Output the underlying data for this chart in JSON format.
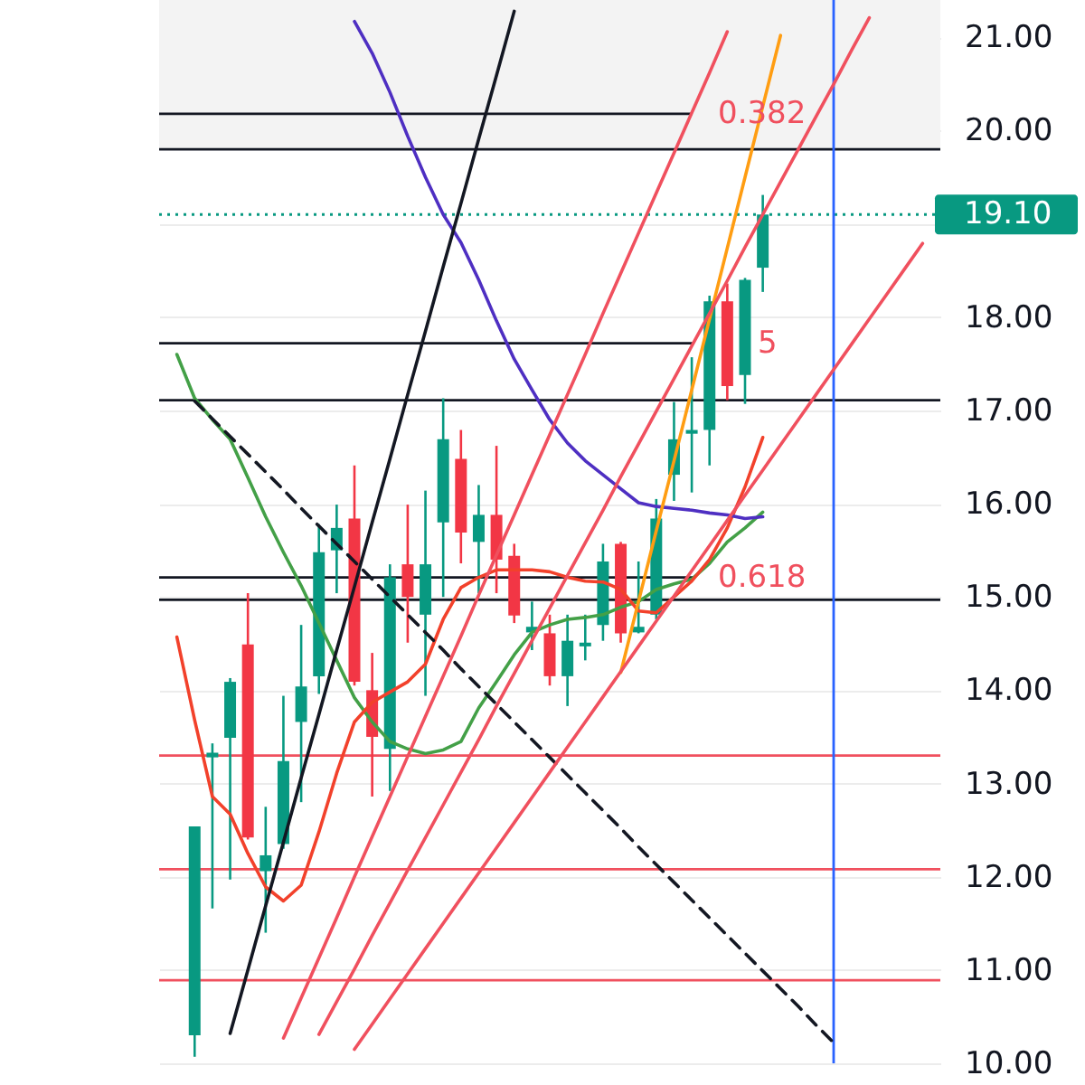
{
  "chart_data": {
    "type": "candlestick",
    "categories": [
      null,
      null,
      null,
      null,
      null,
      null,
      null,
      null,
      null,
      null,
      null,
      null,
      null,
      null,
      null,
      null,
      null,
      null,
      null,
      null,
      null,
      null,
      null,
      null,
      null,
      null,
      null,
      null,
      null,
      null,
      null,
      null,
      null,
      null,
      null,
      null,
      null,
      null,
      null,
      null,
      null,
      null,
      null
    ],
    "ohlc": [
      null,
      [
        10.3,
        12.54,
        10.07,
        12.54
      ],
      [
        13.28,
        13.43,
        11.66,
        13.33
      ],
      [
        13.49,
        14.13,
        11.97,
        14.09
      ],
      [
        14.49,
        15.04,
        12.4,
        12.42
      ],
      [
        12.06,
        12.75,
        11.4,
        12.23
      ],
      [
        12.35,
        13.94,
        12.3,
        13.24
      ],
      [
        13.66,
        14.7,
        12.8,
        14.04
      ],
      [
        14.15,
        15.78,
        13.96,
        15.48
      ],
      [
        15.5,
        15.99,
        15.04,
        15.74
      ],
      [
        15.84,
        16.41,
        14.05,
        14.09
      ],
      [
        14.0,
        14.4,
        12.86,
        13.5
      ],
      [
        13.37,
        15.35,
        12.92,
        15.21
      ],
      [
        15.35,
        15.99,
        14.51,
        15.0
      ],
      [
        14.81,
        16.14,
        13.94,
        15.35
      ],
      [
        15.8,
        17.13,
        15.0,
        16.69
      ],
      [
        16.48,
        16.79,
        15.36,
        15.69
      ],
      [
        15.59,
        16.2,
        15.04,
        15.88
      ],
      [
        15.88,
        16.62,
        15.04,
        15.4
      ],
      [
        15.44,
        15.57,
        14.72,
        14.8
      ],
      [
        14.62,
        14.95,
        14.43,
        14.68
      ],
      [
        14.61,
        14.81,
        14.05,
        14.15
      ],
      [
        14.15,
        14.81,
        13.83,
        14.53
      ],
      [
        14.47,
        14.81,
        14.32,
        14.51
      ],
      [
        14.7,
        15.57,
        14.53,
        15.38
      ],
      [
        15.57,
        15.59,
        14.51,
        14.61
      ],
      [
        14.62,
        15.38,
        14.61,
        14.68
      ],
      [
        14.81,
        16.05,
        14.76,
        15.84
      ],
      [
        16.31,
        17.09,
        16.03,
        16.69
      ],
      [
        16.75,
        17.57,
        16.12,
        16.79
      ],
      [
        16.79,
        18.23,
        16.41,
        18.17
      ],
      [
        18.17,
        18.36,
        17.11,
        17.26
      ],
      [
        17.38,
        18.42,
        17.07,
        18.4
      ],
      [
        18.53,
        19.31,
        18.27,
        19.1
      ],
      null,
      null,
      null,
      null,
      null,
      null,
      null,
      null,
      null
    ],
    "colors": [
      null,
      "#089981",
      "#089981",
      "#089981",
      "#f23645",
      "#089981",
      "#089981",
      "#089981",
      "#089981",
      "#089981",
      "#f23645",
      "#f23645",
      "#089981",
      "#f23645",
      "#089981",
      "#089981",
      "#f23645",
      "#089981",
      "#f23645",
      "#f23645",
      "#089981",
      "#f23645",
      "#089981",
      "#089981",
      "#089981",
      "#f23645",
      "#089981",
      "#089981",
      "#089981",
      "#089981",
      "#089981",
      "#f23645",
      "#089981",
      "#089981",
      null,
      null,
      null,
      null,
      null,
      null,
      null,
      null,
      null
    ],
    "series": [
      {
        "type": "line",
        "color": "#43a047",
        "values": [
          17.6,
          17.13,
          16.9,
          16.69,
          16.28,
          15.86,
          15.48,
          15.12,
          14.72,
          14.32,
          13.92,
          13.66,
          13.45,
          13.37,
          13.32,
          13.36,
          13.45,
          13.81,
          14.09,
          14.38,
          14.62,
          14.7,
          14.76,
          14.78,
          14.81,
          14.89,
          14.95,
          15.08,
          15.14,
          15.19,
          15.36,
          15.59,
          15.74,
          15.91,
          null,
          null,
          null,
          null,
          null,
          null,
          null,
          null,
          null
        ]
      },
      {
        "type": "line",
        "color": "#f2412b",
        "values": [
          14.57,
          13.68,
          12.86,
          12.67,
          12.25,
          11.89,
          11.74,
          11.91,
          12.48,
          13.11,
          13.66,
          13.87,
          13.98,
          14.09,
          14.28,
          14.76,
          15.1,
          15.21,
          15.29,
          15.29,
          15.29,
          15.27,
          15.21,
          15.17,
          15.16,
          15.08,
          14.85,
          14.83,
          15.0,
          15.17,
          15.4,
          15.74,
          16.18,
          16.71,
          null,
          null,
          null,
          null,
          null,
          null,
          null,
          null,
          null
        ]
      },
      {
        "type": "line",
        "color": "#4e2fc2",
        "values": [
          null,
          null,
          null,
          null,
          null,
          null,
          null,
          null,
          null,
          null,
          21.17,
          20.83,
          20.41,
          19.94,
          19.5,
          19.1,
          18.8,
          18.4,
          17.96,
          17.55,
          17.22,
          16.9,
          16.65,
          16.46,
          16.31,
          16.16,
          16.01,
          15.97,
          15.95,
          15.93,
          15.9,
          15.88,
          15.84,
          15.86,
          null,
          null,
          null,
          null,
          null,
          null,
          null,
          null,
          null
        ]
      },
      {
        "type": "line",
        "color": "#ff9d12",
        "values": [
          null,
          null,
          null,
          null,
          null,
          null,
          null,
          null,
          null,
          null,
          null,
          null,
          null,
          null,
          null,
          null,
          null,
          null,
          null,
          null,
          null,
          null,
          null,
          null,
          null,
          14.19,
          14.95,
          15.71,
          16.46,
          17.22,
          17.98,
          18.74,
          19.5,
          20.26,
          21.02,
          null,
          null,
          null,
          null,
          null,
          null,
          null,
          null
        ]
      },
      {
        "type": "line",
        "color": "#131722",
        "values": [
          null,
          null,
          null,
          10.32,
          11.0,
          11.69,
          12.37,
          13.06,
          13.74,
          14.43,
          15.11,
          15.8,
          16.48,
          17.17,
          17.85,
          18.54,
          19.22,
          19.91,
          20.59,
          21.28,
          null,
          null,
          null,
          null,
          null,
          null,
          null,
          null,
          null,
          null,
          null,
          null,
          null,
          null,
          null,
          null,
          null,
          null,
          null,
          null,
          null,
          null,
          null
        ]
      },
      {
        "type": "line",
        "color": "#131722",
        "line_style": "dashed",
        "values": [
          null,
          17.1,
          16.91,
          16.72,
          16.53,
          16.34,
          16.15,
          15.95,
          15.76,
          15.57,
          15.38,
          15.19,
          15.0,
          14.81,
          14.62,
          14.43,
          14.23,
          14.04,
          13.85,
          13.66,
          13.47,
          13.28,
          13.09,
          12.9,
          12.71,
          12.52,
          12.32,
          12.13,
          11.94,
          11.75,
          11.56,
          11.37,
          11.18,
          10.99,
          10.8,
          10.61,
          10.41,
          10.22,
          null,
          null,
          null,
          null,
          null
        ]
      },
      {
        "type": "line",
        "color": "#f0505e",
        "values": [
          null,
          null,
          null,
          null,
          null,
          null,
          10.27,
          10.7,
          11.13,
          11.56,
          12.0,
          12.43,
          12.86,
          13.29,
          13.72,
          14.15,
          14.58,
          15.02,
          15.45,
          15.88,
          16.31,
          16.74,
          17.17,
          17.6,
          18.04,
          18.47,
          18.9,
          19.33,
          19.76,
          20.19,
          20.62,
          21.06,
          null,
          null,
          null,
          null,
          null,
          null,
          null,
          null,
          null,
          null,
          null
        ]
      },
      {
        "type": "line",
        "color": "#f0505e",
        "values": [
          null,
          null,
          null,
          null,
          null,
          null,
          null,
          null,
          10.31,
          10.66,
          11.01,
          11.37,
          11.72,
          12.07,
          12.42,
          12.77,
          13.12,
          13.47,
          13.83,
          14.18,
          14.53,
          14.88,
          15.23,
          15.58,
          15.93,
          16.29,
          16.64,
          16.99,
          17.34,
          17.69,
          18.04,
          18.39,
          18.75,
          19.1,
          19.45,
          19.8,
          20.15,
          20.5,
          20.86,
          21.21,
          null,
          null,
          null
        ]
      },
      {
        "type": "line",
        "color": "#f0505e",
        "values": [
          null,
          null,
          null,
          null,
          null,
          null,
          null,
          null,
          null,
          null,
          10.15,
          10.42,
          10.69,
          10.96,
          11.23,
          11.5,
          11.77,
          12.04,
          12.31,
          12.58,
          12.85,
          13.12,
          13.39,
          13.66,
          13.93,
          14.2,
          14.47,
          14.74,
          15.01,
          15.28,
          15.55,
          15.82,
          16.09,
          16.36,
          16.63,
          16.9,
          17.17,
          17.44,
          17.71,
          17.98,
          18.25,
          18.52,
          18.79
        ]
      }
    ],
    "ref_lines": [
      {
        "axis": "y",
        "value": 20.18,
        "color": "#131722"
      },
      {
        "axis": "y",
        "value": 17.72,
        "color": "#131722"
      },
      {
        "axis": "y",
        "value": 15.21,
        "color": "#131722"
      },
      {
        "axis": "y",
        "value": 19.8,
        "color": "#131722"
      },
      {
        "axis": "y",
        "value": 19.1,
        "label": "19.10",
        "color": "#089981",
        "line_style": "dotted"
      },
      {
        "axis": "y",
        "value": 17.11,
        "color": "#131722"
      },
      {
        "axis": "y",
        "value": 14.97,
        "color": "#131722"
      },
      {
        "axis": "y",
        "value": 13.3,
        "color": "#f0505e"
      },
      {
        "axis": "y",
        "value": 12.08,
        "color": "#f0505e"
      },
      {
        "axis": "y",
        "value": 10.89,
        "color": "#f0505e"
      }
    ],
    "annotations": [
      "0.382",
      "5",
      "0.618"
    ],
    "bands": [
      {
        "axis": "y",
        "from": 19.8,
        "to": 21.4,
        "color": "#f3f3f3"
      }
    ],
    "ylim": [
      10.0,
      21.4
    ],
    "yticks": [
      {
        "value": 10,
        "label": "10.00"
      },
      {
        "value": 11,
        "label": "11.00"
      },
      {
        "value": 12,
        "label": "12.00"
      },
      {
        "value": 13,
        "label": "13.00"
      },
      {
        "value": 14,
        "label": "14.00"
      },
      {
        "value": 15,
        "label": "15.00"
      },
      {
        "value": 16,
        "label": "16.00"
      },
      {
        "value": 17,
        "label": "17.00"
      },
      {
        "value": 18,
        "label": "18.00"
      },
      {
        "value": 19,
        "label": null
      },
      {
        "value": 20,
        "label": "20.00"
      },
      {
        "value": 21,
        "label": "21.00"
      }
    ],
    "tick_labels": "y",
    "grid": "y"
  }
}
